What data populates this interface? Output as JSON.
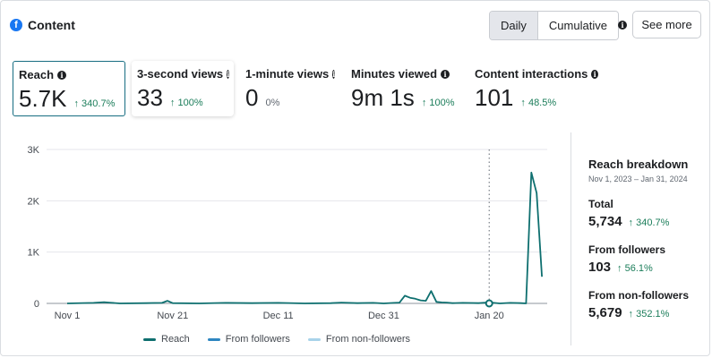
{
  "header": {
    "title": "Content",
    "logo": "facebook-icon"
  },
  "view_toggle": {
    "options": [
      "Daily",
      "Cumulative"
    ],
    "selected": "Daily"
  },
  "see_more_label": "See more",
  "metrics": [
    {
      "label": "Reach",
      "value": "5.7K",
      "change": "↑ 340.7%"
    },
    {
      "label": "3-second views",
      "value": "33",
      "change": "↑ 100%"
    },
    {
      "label": "1-minute views",
      "value": "0",
      "change": "0%"
    },
    {
      "label": "Minutes viewed",
      "value": "9m 1s",
      "change": "↑ 100%"
    },
    {
      "label": "Content interactions",
      "value": "101",
      "change": "↑ 48.5%"
    }
  ],
  "chart_data": {
    "type": "line",
    "title": "",
    "xlabel": "",
    "ylabel": "",
    "ylim": [
      0,
      3000
    ],
    "y_ticks": [
      "0",
      "1K",
      "2K",
      "3K"
    ],
    "y_tick_values": [
      0,
      1000,
      2000,
      3000
    ],
    "x_range": [
      0,
      91
    ],
    "x_ticks": [
      "Nov 1",
      "Nov 21",
      "Dec 11",
      "Dec 31",
      "Jan 20"
    ],
    "x_tick_days": [
      0,
      20,
      40,
      60,
      80
    ],
    "highlight_day": 80,
    "series": [
      {
        "name": "Reach",
        "color": "#0e6f6f",
        "x": [
          0,
          5,
          7,
          8,
          10,
          15,
          18,
          19,
          20,
          25,
          30,
          35,
          40,
          45,
          50,
          52,
          55,
          58,
          60,
          62,
          63,
          64,
          65,
          66,
          67,
          68,
          69,
          70,
          71,
          72,
          73,
          75,
          78,
          80,
          82,
          84,
          86,
          87,
          88,
          89,
          90
        ],
        "y": [
          0,
          10,
          25,
          15,
          0,
          5,
          10,
          50,
          5,
          0,
          10,
          5,
          10,
          0,
          5,
          15,
          5,
          10,
          0,
          10,
          15,
          150,
          110,
          90,
          60,
          50,
          240,
          30,
          20,
          15,
          5,
          10,
          5,
          20,
          0,
          10,
          5,
          0,
          2550,
          2150,
          520
        ]
      },
      {
        "name": "From followers",
        "color": "#2e86c1"
      },
      {
        "name": "From non-followers",
        "color": "#a8d3ea"
      }
    ]
  },
  "breakdown": {
    "title": "Reach breakdown",
    "date_range": "Nov 1, 2023 – Jan 31, 2024",
    "items": [
      {
        "label": "Total",
        "value": "5,734",
        "change": "↑ 340.7%"
      },
      {
        "label": "From followers",
        "value": "103",
        "change": "↑ 56.1%"
      },
      {
        "label": "From non-followers",
        "value": "5,679",
        "change": "↑ 352.1%"
      }
    ]
  }
}
